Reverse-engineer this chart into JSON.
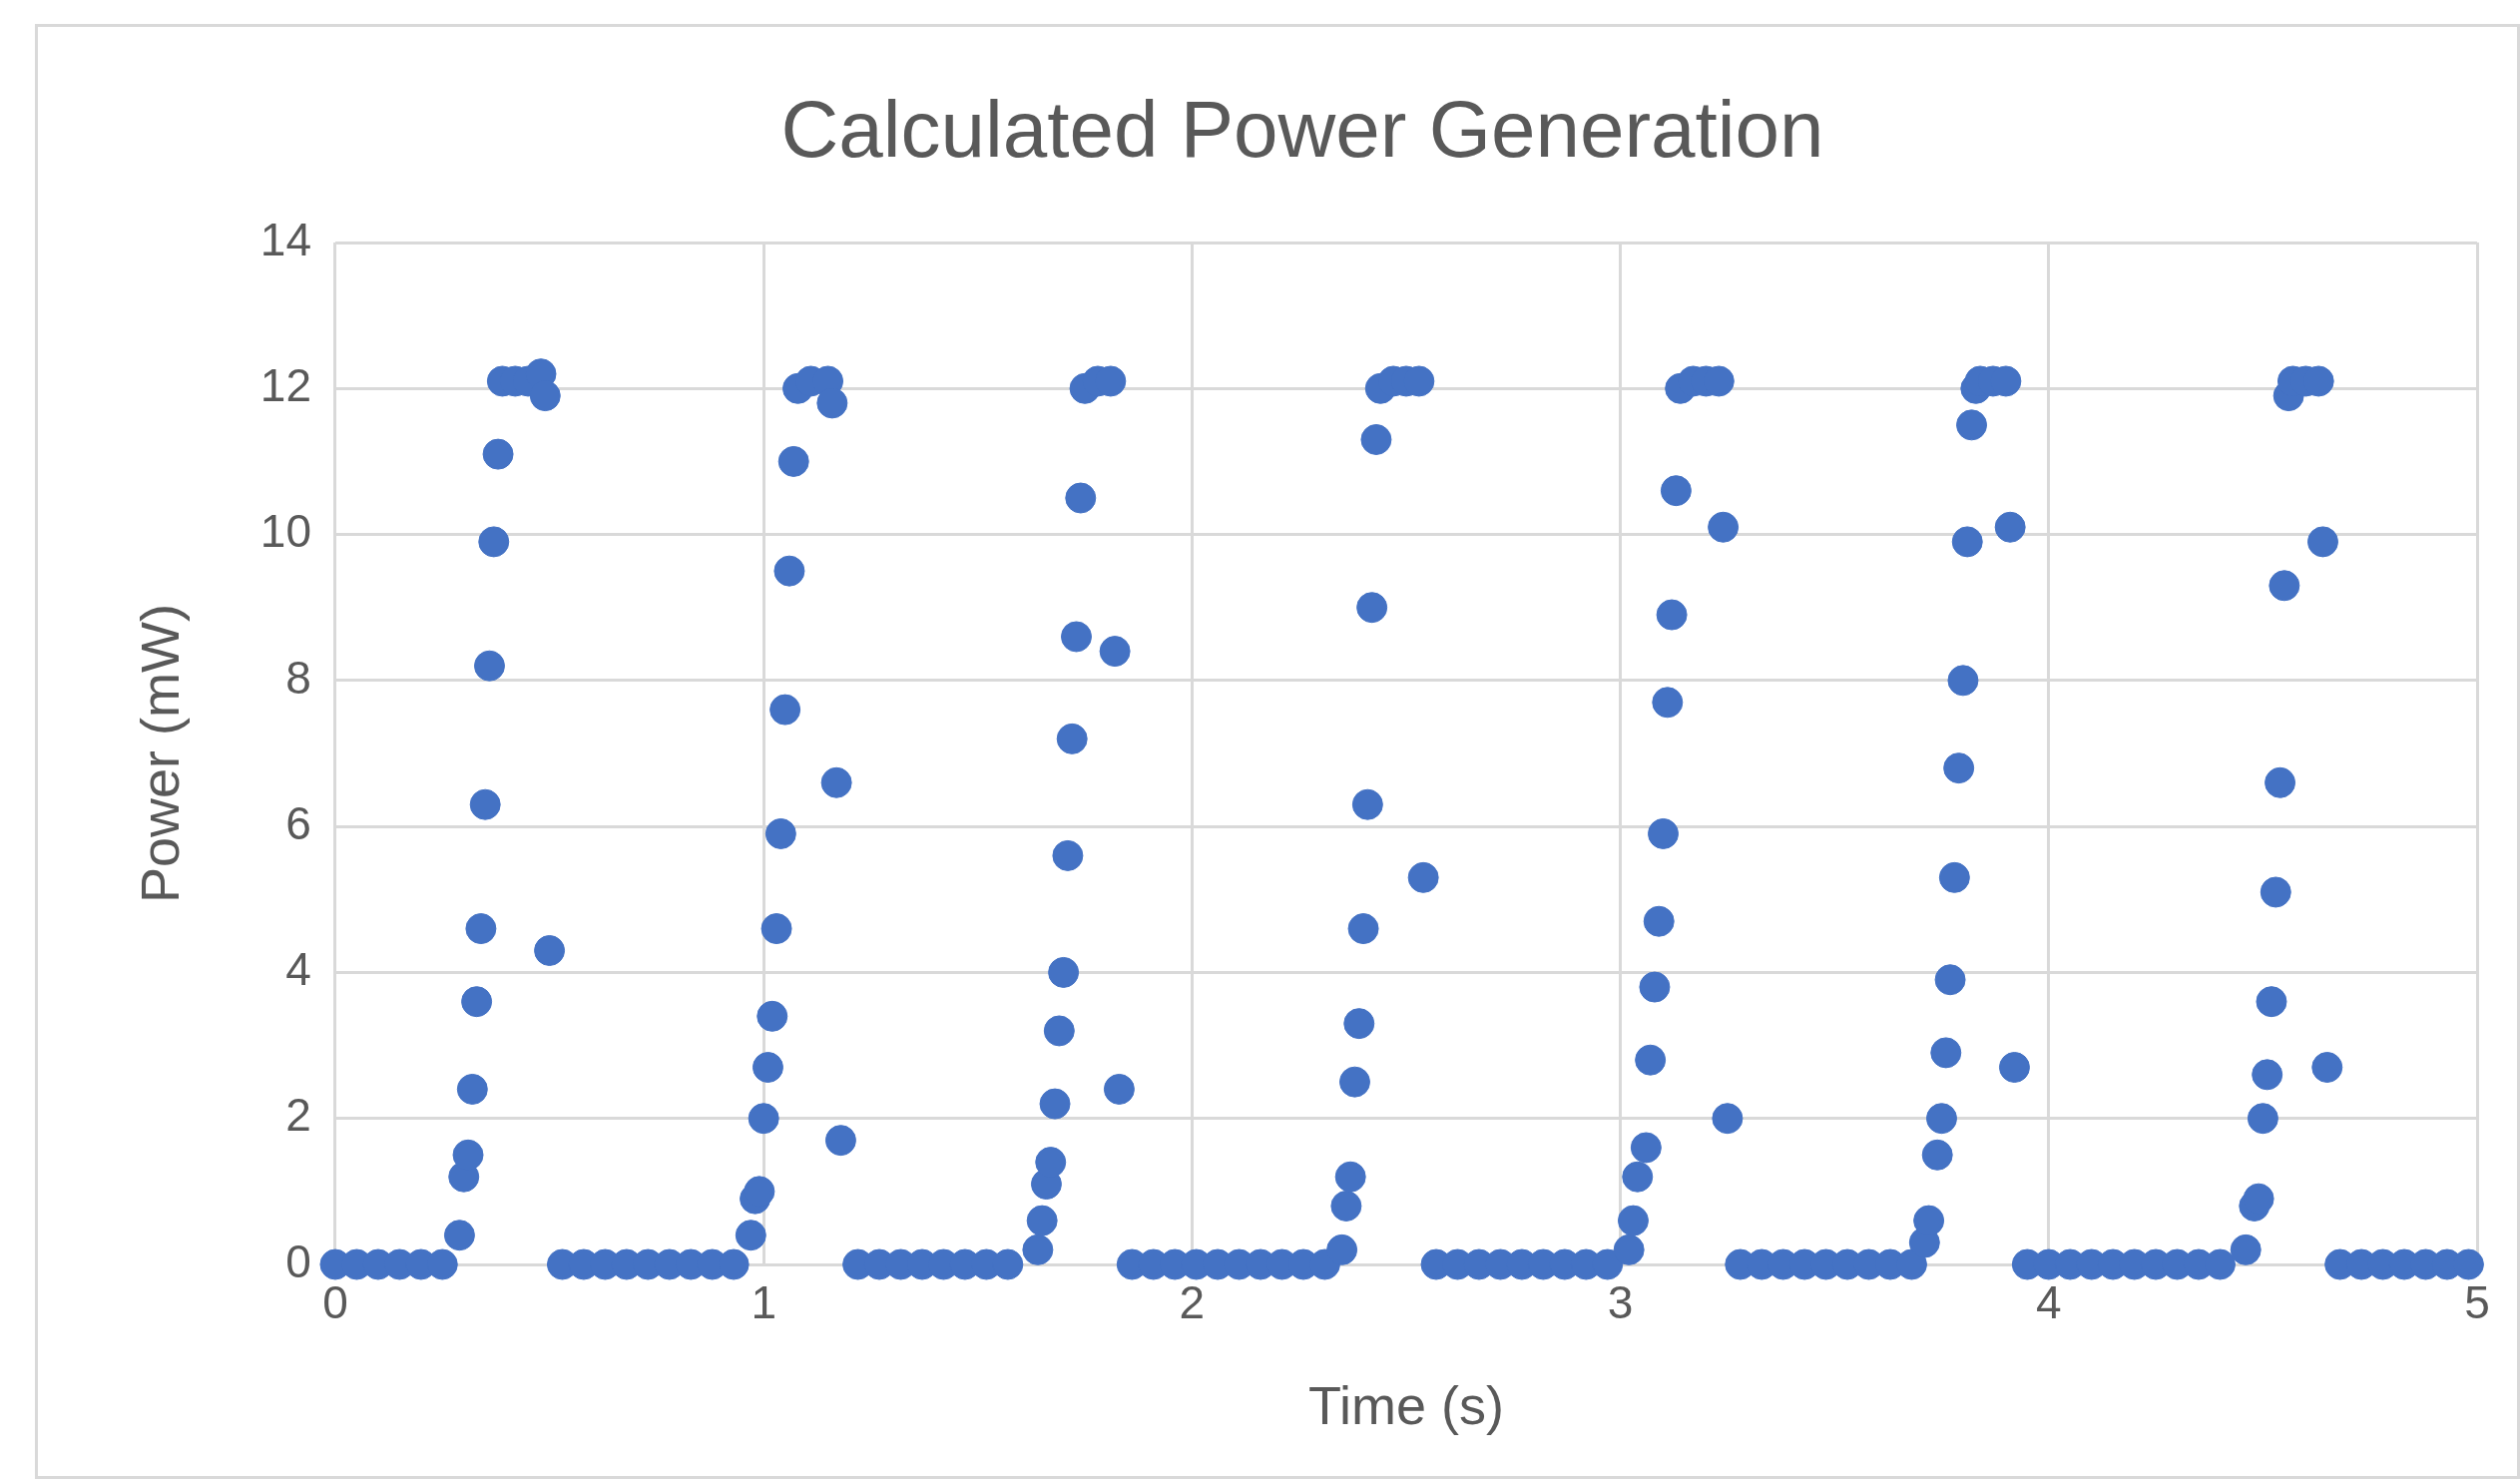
{
  "chart_data": {
    "type": "scatter",
    "title": "Calculated Power Generation",
    "xlabel": "Time (s)",
    "ylabel": "Power (mW)",
    "color": "#4472c4",
    "marker": "circle",
    "grid": true,
    "legend": false,
    "xlim": [
      0,
      5
    ],
    "xticks": [
      0,
      1,
      2,
      3,
      4,
      5
    ],
    "ylim": [
      0,
      14
    ],
    "yticks": [
      0,
      2,
      4,
      6,
      8,
      10,
      12,
      14
    ],
    "x": [
      0,
      0.05,
      0.1,
      0.15,
      0.2,
      0.25,
      0.29,
      0.3,
      0.31,
      0.32,
      0.33,
      0.34,
      0.35,
      0.36,
      0.37,
      0.38,
      0.39,
      0.42,
      0.45,
      0.48,
      0.49,
      0.5,
      0.53,
      0.58,
      0.63,
      0.68,
      0.73,
      0.78,
      0.83,
      0.88,
      0.93,
      0.97,
      0.98,
      0.99,
      1,
      1.01,
      1.02,
      1.03,
      1.04,
      1.05,
      1.06,
      1.07,
      1.08,
      1.11,
      1.15,
      1.16,
      1.17,
      1.18,
      1.22,
      1.27,
      1.32,
      1.37,
      1.42,
      1.47,
      1.52,
      1.57,
      1.64,
      1.65,
      1.66,
      1.67,
      1.68,
      1.69,
      1.7,
      1.71,
      1.72,
      1.73,
      1.74,
      1.75,
      1.78,
      1.81,
      1.82,
      1.83,
      1.86,
      1.91,
      1.96,
      2.01,
      2.06,
      2.11,
      2.16,
      2.21,
      2.26,
      2.31,
      2.35,
      2.36,
      2.37,
      2.38,
      2.39,
      2.4,
      2.41,
      2.42,
      2.43,
      2.44,
      2.47,
      2.5,
      2.53,
      2.54,
      2.57,
      2.62,
      2.67,
      2.72,
      2.77,
      2.82,
      2.87,
      2.92,
      2.97,
      3.02,
      3.03,
      3.04,
      3.06,
      3.07,
      3.08,
      3.09,
      3.1,
      3.11,
      3.12,
      3.13,
      3.14,
      3.17,
      3.2,
      3.23,
      3.24,
      3.25,
      3.28,
      3.33,
      3.38,
      3.43,
      3.48,
      3.53,
      3.58,
      3.63,
      3.68,
      3.71,
      3.72,
      3.74,
      3.75,
      3.76,
      3.77,
      3.78,
      3.79,
      3.8,
      3.81,
      3.82,
      3.83,
      3.84,
      3.87,
      3.9,
      3.91,
      3.92,
      3.95,
      4,
      4.05,
      4.1,
      4.15,
      4.2,
      4.25,
      4.3,
      4.35,
      4.4,
      4.46,
      4.48,
      4.49,
      4.5,
      4.51,
      4.52,
      4.53,
      4.54,
      4.55,
      4.56,
      4.57,
      4.6,
      4.63,
      4.64,
      4.65,
      4.68,
      4.73,
      4.78,
      4.83,
      4.88,
      4.93,
      4.98
    ],
    "values": [
      0,
      0,
      0,
      0,
      0,
      0,
      0.4,
      1.2,
      1.5,
      2.4,
      3.6,
      4.6,
      6.3,
      8.2,
      9.9,
      11.1,
      12.1,
      12.1,
      12.1,
      12.2,
      11.9,
      4.3,
      0,
      0,
      0,
      0,
      0,
      0,
      0,
      0,
      0,
      0.4,
      0.9,
      1,
      2,
      2.7,
      3.4,
      4.6,
      5.9,
      7.6,
      9.5,
      11,
      12,
      12.1,
      12.1,
      11.8,
      6.6,
      1.7,
      0,
      0,
      0,
      0,
      0,
      0,
      0,
      0,
      0.2,
      0.6,
      1.1,
      1.4,
      2.2,
      3.2,
      4,
      5.6,
      7.2,
      8.6,
      10.5,
      12,
      12.1,
      12.1,
      8.4,
      2.4,
      0,
      0,
      0,
      0,
      0,
      0,
      0,
      0,
      0,
      0,
      0.2,
      0.8,
      1.2,
      2.5,
      3.3,
      4.6,
      6.3,
      9,
      11.3,
      12,
      12.1,
      12.1,
      12.1,
      5.3,
      0,
      0,
      0,
      0,
      0,
      0,
      0,
      0,
      0,
      0.2,
      0.6,
      1.2,
      1.6,
      2.8,
      3.8,
      4.7,
      5.9,
      7.7,
      8.9,
      10.6,
      12,
      12.1,
      12.1,
      12.1,
      10.1,
      2,
      0,
      0,
      0,
      0,
      0,
      0,
      0,
      0,
      0,
      0.3,
      0.6,
      1.5,
      2,
      2.9,
      3.9,
      5.3,
      6.8,
      8,
      9.9,
      11.5,
      12,
      12.1,
      12.1,
      12.1,
      10.1,
      2.7,
      0,
      0,
      0,
      0,
      0,
      0,
      0,
      0,
      0,
      0,
      0.2,
      0.8,
      0.9,
      2,
      2.6,
      3.6,
      5.1,
      6.6,
      9.3,
      11.9,
      12.1,
      12.1,
      12.1,
      9.9,
      2.7,
      0,
      0,
      0,
      0,
      0,
      0,
      0
    ]
  }
}
